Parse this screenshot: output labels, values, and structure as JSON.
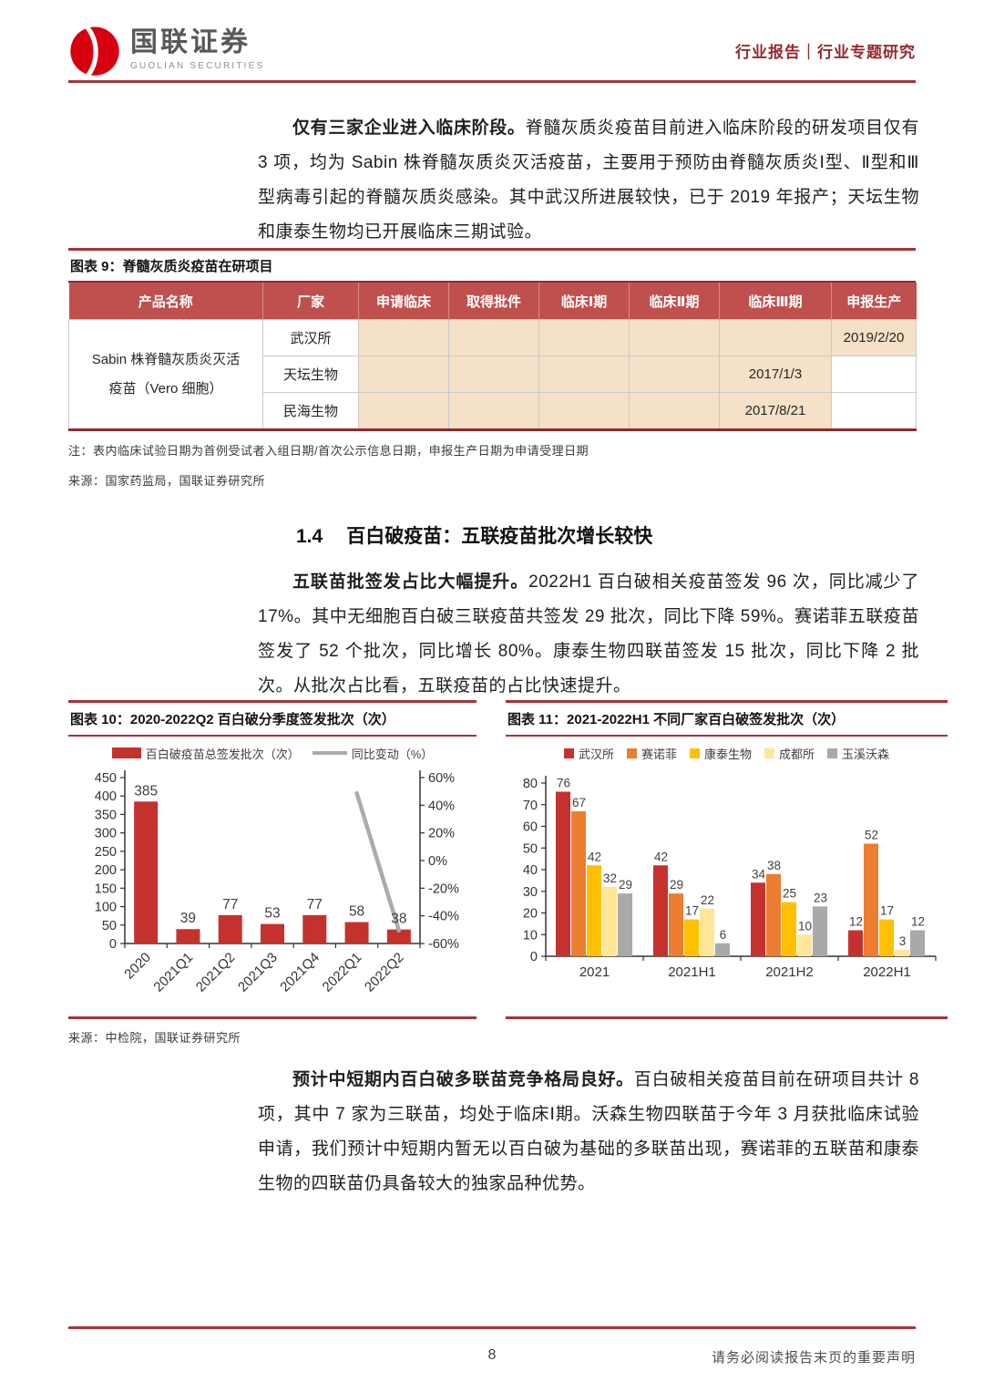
{
  "header": {
    "logo_title": "国联证券",
    "logo_subtitle": "GUOLIAN SECURITIES",
    "report_label": "行业报告｜行业专题研究"
  },
  "paragraph1": {
    "lead": "仅有三家企业进入临床阶段。",
    "body": "脊髓灰质炎疫苗目前进入临床阶段的研发项目仅有 3 项，均为 Sabin 株脊髓灰质炎灭活疫苗，主要用于预防由脊髓灰质炎Ⅰ型、Ⅱ型和Ⅲ型病毒引起的脊髓灰质炎感染。其中武汉所进展较快，已于 2019 年报产；天坛生物和康泰生物均已开展临床三期试验。"
  },
  "table9": {
    "caption": "图表 9：脊髓灰质炎疫苗在研项目",
    "headers": [
      "产品名称",
      "厂家",
      "申请临床",
      "取得批件",
      "临床Ⅰ期",
      "临床Ⅱ期",
      "临床Ⅲ期",
      "申报生产"
    ],
    "product_line1": "Sabin 株脊髓灰质炎灭活",
    "product_line2": "疫苗（Vero 细胞）",
    "rows": [
      {
        "company": "武汉所",
        "clinical3_date": "",
        "filing_date": "2019/2/20"
      },
      {
        "company": "天坛生物",
        "clinical3_date": "2017/1/3",
        "filing_date": ""
      },
      {
        "company": "民海生物",
        "clinical3_date": "2017/8/21",
        "filing_date": ""
      }
    ],
    "note": "注：表内临床试验日期为首例受试者入组日期/首次公示信息日期，申报生产日期为申请受理日期",
    "source": "来源：国家药监局，国联证券研究所"
  },
  "section": {
    "number": "1.4",
    "title": "百白破疫苗：五联疫苗批次增长较快"
  },
  "paragraph2": {
    "lead": "五联苗批签发占比大幅提升。",
    "body": "2022H1 百白破相关疫苗签发 96 次，同比减少了 17%。其中无细胞百白破三联疫苗共签发 29 批次，同比下降 59%。赛诺菲五联疫苗签发了 52 个批次，同比增长 80%。康泰生物四联苗签发 15 批次，同比下降 2 批次。从批次占比看，五联疫苗的占比快速提升。"
  },
  "chart_data": [
    {
      "type": "bar",
      "title": "图表 10：2020-2022Q2 百白破分季度签发批次（次）",
      "categories": [
        "2020",
        "2021Q1",
        "2021Q2",
        "2021Q3",
        "2021Q4",
        "2022Q1",
        "2022Q2"
      ],
      "series": [
        {
          "name": "百白破疫苗总签发批次（次）",
          "color": "#c5322d",
          "values": [
            385,
            39,
            77,
            53,
            77,
            58,
            38
          ]
        }
      ],
      "line_series": {
        "name": "同比变动（%）",
        "color": "#ababab",
        "points": [
          {
            "category": "2022Q1",
            "value": 48.7
          },
          {
            "category": "2022Q2",
            "value": -50.6
          }
        ]
      },
      "y_left": {
        "min": 0,
        "max": 450,
        "step": 50,
        "ticks": [
          450,
          400,
          350,
          300,
          250,
          200,
          150,
          100,
          50,
          0
        ]
      },
      "y_right": {
        "min": -60,
        "max": 60,
        "step": 20,
        "suffix": "%",
        "ticks": [
          "60%",
          "40%",
          "20%",
          "0%",
          "-20%",
          "-40%",
          "-60%"
        ]
      },
      "legend_position": "top",
      "grid": false,
      "source": "来源：中检院，国联证券研究所"
    },
    {
      "type": "bar",
      "title": "图表 11：2021-2022H1 不同厂家百白破签发批次（次）",
      "categories": [
        "2021",
        "2021H1",
        "2021H2",
        "2022H1"
      ],
      "series": [
        {
          "name": "武汉所",
          "color": "#c5322d",
          "values": [
            76,
            42,
            34,
            12
          ]
        },
        {
          "name": "赛诺菲",
          "color": "#ed7d31",
          "values": [
            67,
            29,
            38,
            52
          ]
        },
        {
          "name": "康泰生物",
          "color": "#ffc000",
          "values": [
            42,
            17,
            25,
            17
          ]
        },
        {
          "name": "成都所",
          "color": "#ffe699",
          "values": [
            32,
            22,
            10,
            3
          ]
        },
        {
          "name": "玉溪沃森",
          "color": "#a9a9a9",
          "values": [
            29,
            6,
            23,
            12
          ]
        }
      ],
      "y": {
        "min": 0,
        "max": 80,
        "step": 10,
        "ticks": [
          80,
          70,
          60,
          50,
          40,
          30,
          20,
          10,
          0
        ]
      },
      "legend_position": "top",
      "grid": false
    }
  ],
  "paragraph3": {
    "lead": "预计中短期内百白破多联苗竞争格局良好。",
    "body": "百白破相关疫苗目前在研项目共计 8 项，其中 7 家为三联苗，均处于临床Ⅰ期。沃森生物四联苗于今年 3 月获批临床试验申请，我们预计中短期内暂无以百白破为基础的多联苗出现，赛诺菲的五联苗和康泰生物的四联苗仍具备较大的独家品种优势。"
  },
  "footer": {
    "page_number": "8",
    "disclaimer": "请务必阅读报告末页的重要声明"
  }
}
